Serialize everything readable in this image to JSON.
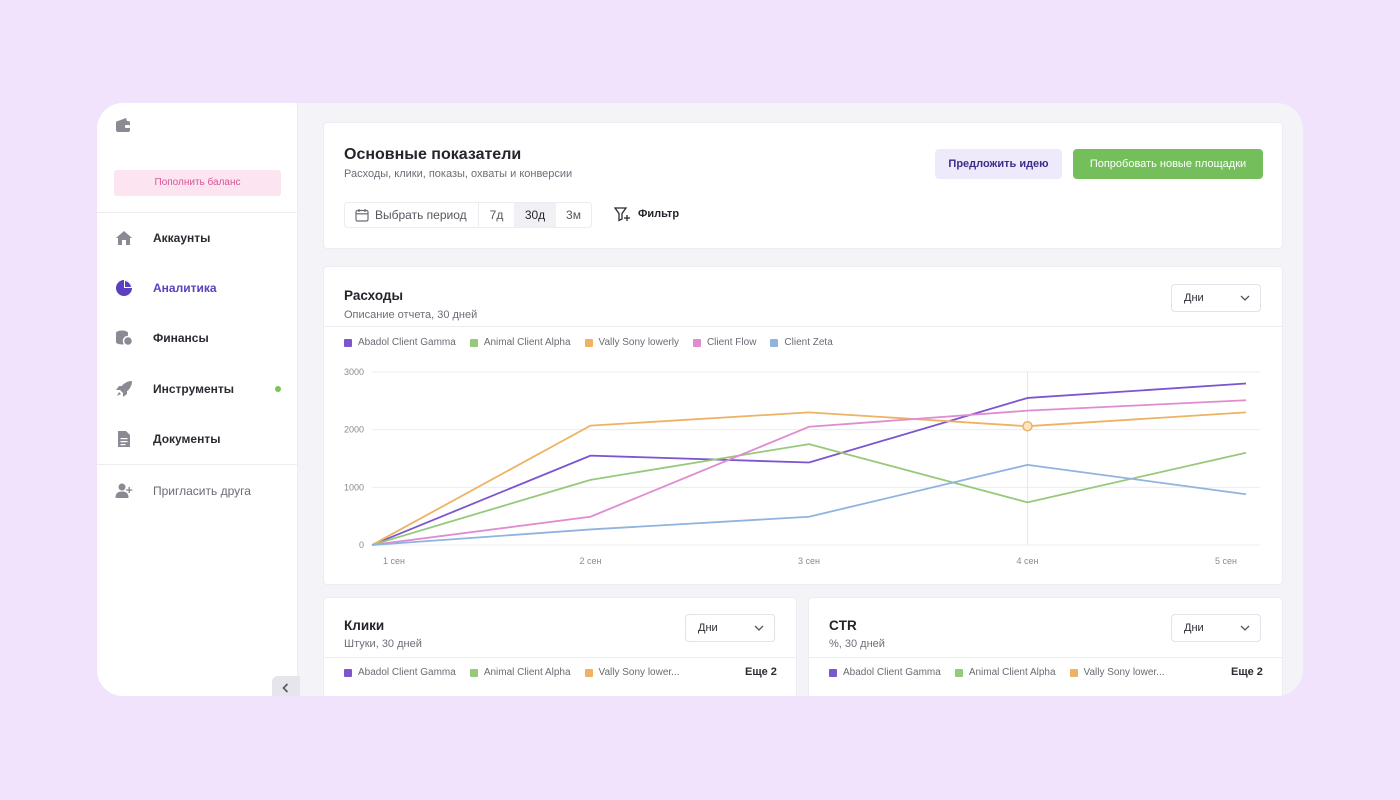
{
  "sidebar": {
    "topup_label": "Пополнить баланс",
    "items": [
      {
        "label": "Аккаунты",
        "icon": "home-icon"
      },
      {
        "label": "Аналитика",
        "icon": "pie-chart-icon",
        "active": true
      },
      {
        "label": "Финансы",
        "icon": "coins-icon"
      },
      {
        "label": "Инструменты",
        "icon": "rocket-icon",
        "status": "online"
      },
      {
        "label": "Документы",
        "icon": "document-icon"
      }
    ],
    "invite_label": "Пригласить друга"
  },
  "header": {
    "title": "Основные показатели",
    "subtitle": "Расходы, клики, показы, охваты и конверсии",
    "idea_button": "Предложить идею",
    "try_button": "Попробовать новые площадки",
    "period_picker": "Выбрать период",
    "periods": [
      "7д",
      "30д",
      "3м"
    ],
    "active_period": "30д",
    "filter_label": "Фильтр"
  },
  "colors": {
    "purple": "#7c55cf",
    "green": "#96c97a",
    "orange": "#eeb263",
    "pink": "#df8cd0",
    "blue": "#8fb4df",
    "accent": "#5b3fbf",
    "cta": "#74bf5c"
  },
  "expenses": {
    "title": "Расходы",
    "subtitle": "Описание отчета, 30 дней",
    "dropdown": "Дни"
  },
  "chart_data": {
    "type": "line",
    "x": [
      "1 сен",
      "2 сен",
      "3 сен",
      "4 сен",
      "5 сен"
    ],
    "yticks": [
      "0",
      "1000",
      "2000",
      "3000"
    ],
    "ylim": [
      0,
      3000
    ],
    "grid": true,
    "legend_position": "top-left",
    "highlight": {
      "series": "Vally Sony lowerly",
      "x": "4 сен"
    },
    "series": [
      {
        "name": "Abadol Client Gamma",
        "color": "#7c55cf",
        "values": [
          0,
          1550,
          1430,
          2550,
          2800
        ]
      },
      {
        "name": "Animal Client Alpha",
        "color": "#96c97a",
        "values": [
          0,
          1130,
          1750,
          740,
          1600
        ]
      },
      {
        "name": "Vally Sony lowerly",
        "color": "#eeb263",
        "values": [
          0,
          2070,
          2300,
          2060,
          2300
        ]
      },
      {
        "name": "Client Flow",
        "color": "#df8cd0",
        "values": [
          0,
          490,
          2050,
          2330,
          2510
        ]
      },
      {
        "name": "Client Zeta",
        "color": "#8fb4df",
        "values": [
          0,
          270,
          490,
          1390,
          880
        ]
      }
    ]
  },
  "clicks": {
    "title": "Клики",
    "subtitle": "Штуки, 30 дней",
    "dropdown": "Дни",
    "legend": [
      "Abadol Client Gamma",
      "Animal Client Alpha",
      "Vally Sony lower..."
    ],
    "more": "Еще 2"
  },
  "ctr": {
    "title": "CTR",
    "subtitle": "%, 30 дней",
    "dropdown": "Дни",
    "legend": [
      "Abadol Client Gamma",
      "Animal Client Alpha",
      "Vally Sony lower..."
    ],
    "more": "Еще 2"
  }
}
